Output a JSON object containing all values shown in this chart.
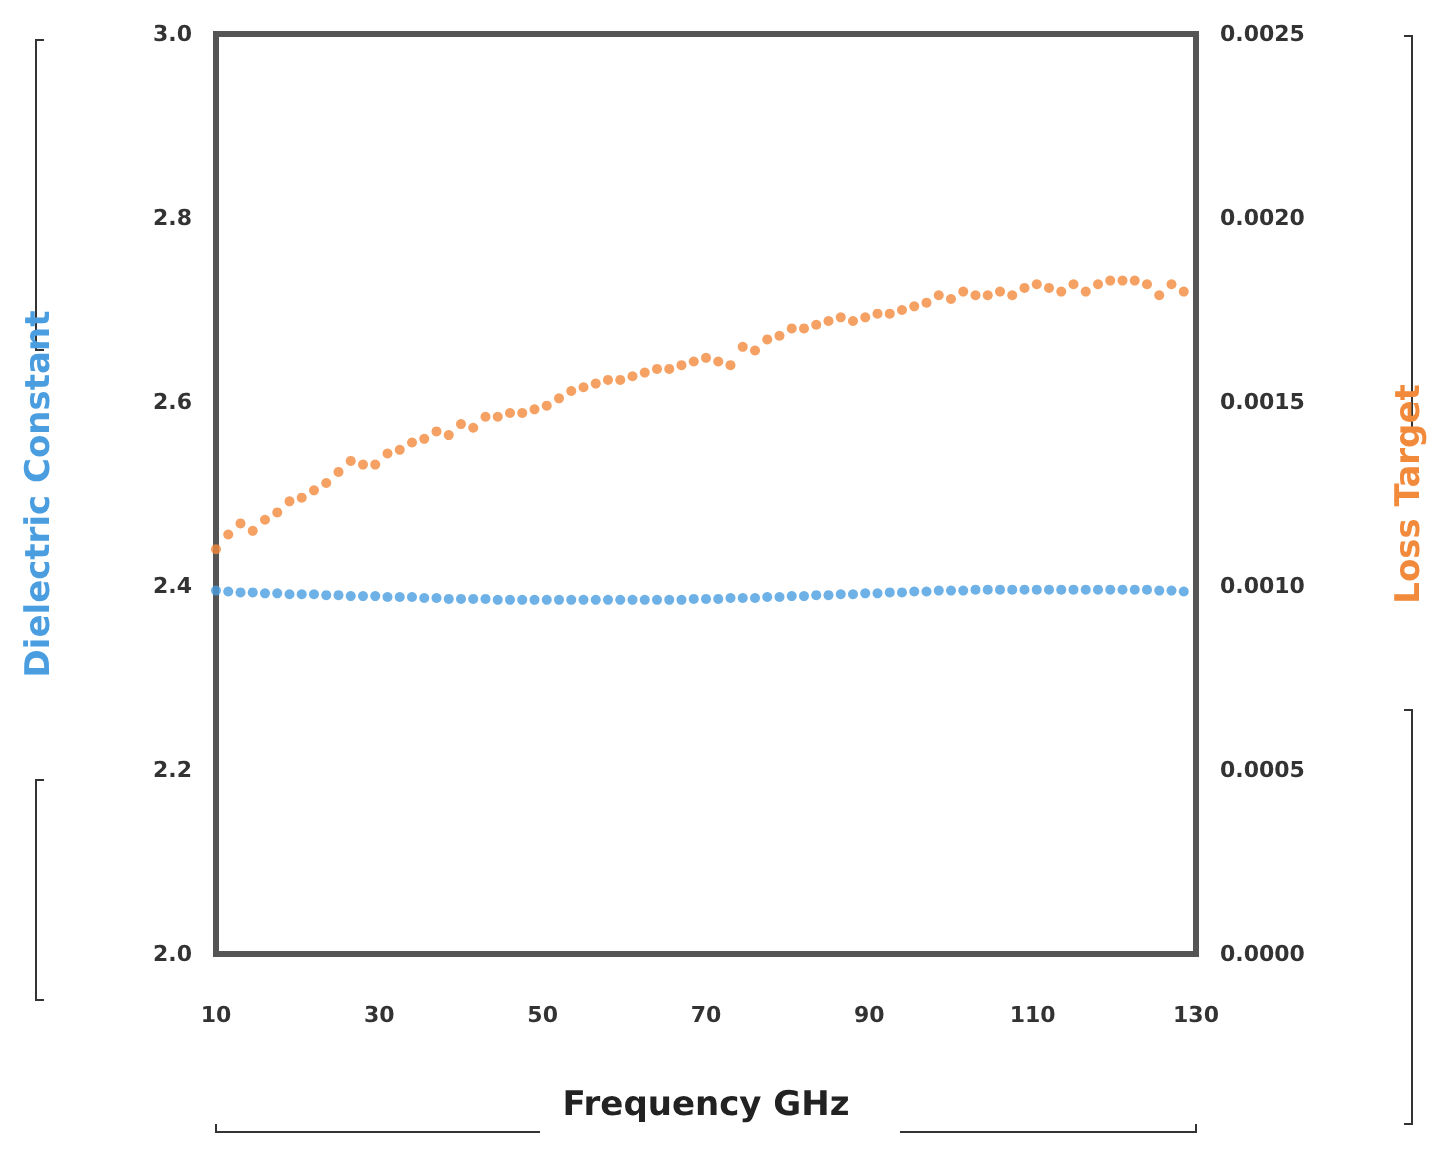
{
  "chart_data": {
    "type": "scatter",
    "xlabel": "Frequency GHz",
    "ylabel": "Dielectric Constant",
    "y2label": "Loss Target",
    "xlim": [
      10,
      130
    ],
    "xticks": [
      10,
      30,
      50,
      70,
      90,
      110,
      130
    ],
    "ylim": [
      2,
      3
    ],
    "yticks": [
      {
        "value": 2,
        "label": "2.0"
      },
      {
        "value": 2.2,
        "label": "2.2"
      },
      {
        "value": 2.4,
        "label": "2.4"
      },
      {
        "value": 2.6,
        "label": "2.6"
      },
      {
        "value": 2.8,
        "label": "2.8"
      },
      {
        "value": 3,
        "label": "3.0"
      }
    ],
    "y2lim": [
      0,
      0.0025
    ],
    "y2ticks": [
      {
        "value": 0,
        "label": "0.0000"
      },
      {
        "value": 0.0005,
        "label": "0.0005"
      },
      {
        "value": 0.001,
        "label": "0.0010"
      },
      {
        "value": 0.0015,
        "label": "0.0015"
      },
      {
        "value": 0.002,
        "label": "0.0020"
      },
      {
        "value": 0.0025,
        "label": "0.0025"
      }
    ],
    "x": [
      10,
      11.5,
      13,
      14.5,
      16,
      17.5,
      19,
      20.5,
      22,
      23.5,
      25,
      26.5,
      28,
      29.5,
      31,
      32.5,
      34,
      35.5,
      37,
      38.5,
      40,
      41.5,
      43,
      44.5,
      46,
      47.5,
      49,
      50.5,
      52,
      53.5,
      55,
      56.5,
      58,
      59.5,
      61,
      62.5,
      64,
      65.5,
      67,
      68.5,
      70,
      71.5,
      73,
      74.5,
      76,
      77.5,
      79,
      80.5,
      82,
      83.5,
      85,
      86.5,
      88,
      89.5,
      91,
      92.5,
      94,
      95.5,
      97,
      98.5,
      100,
      101.5,
      103,
      104.5,
      106,
      107.5,
      109,
      110.5,
      112,
      113.5,
      115,
      116.5,
      118,
      119.5,
      121,
      122.5,
      124,
      125.5,
      127,
      128.5
    ],
    "series": [
      {
        "color": "#4a9ee0",
        "values": [
          2.395,
          2.394,
          2.393,
          2.393,
          2.392,
          2.392,
          2.391,
          2.391,
          2.391,
          2.39,
          2.39,
          2.389,
          2.389,
          2.389,
          2.388,
          2.388,
          2.388,
          2.387,
          2.387,
          2.386,
          2.386,
          2.386,
          2.386,
          2.385,
          2.385,
          2.385,
          2.385,
          2.385,
          2.385,
          2.385,
          2.385,
          2.385,
          2.385,
          2.385,
          2.385,
          2.385,
          2.385,
          2.385,
          2.385,
          2.386,
          2.386,
          2.386,
          2.387,
          2.387,
          2.387,
          2.388,
          2.388,
          2.389,
          2.389,
          2.39,
          2.39,
          2.391,
          2.391,
          2.392,
          2.392,
          2.393,
          2.393,
          2.394,
          2.394,
          2.395,
          2.395,
          2.395,
          2.396,
          2.396,
          2.396,
          2.396,
          2.396,
          2.396,
          2.396,
          2.396,
          2.396,
          2.396,
          2.396,
          2.396,
          2.396,
          2.396,
          2.396,
          2.395,
          2.395,
          2.394
        ]
      },
      {
        "color": "#f28a3c",
        "axis": "y2",
        "values": [
          0.0011,
          0.00114,
          0.00117,
          0.00115,
          0.00118,
          0.0012,
          0.00123,
          0.00124,
          0.00126,
          0.00128,
          0.00131,
          0.00134,
          0.00133,
          0.00133,
          0.00136,
          0.00137,
          0.00139,
          0.0014,
          0.00142,
          0.00141,
          0.00144,
          0.00143,
          0.00146,
          0.00146,
          0.00147,
          0.00147,
          0.00148,
          0.00149,
          0.00151,
          0.00153,
          0.00154,
          0.00155,
          0.00156,
          0.00156,
          0.00157,
          0.00158,
          0.00159,
          0.00159,
          0.0016,
          0.00161,
          0.00162,
          0.00161,
          0.0016,
          0.00165,
          0.00164,
          0.00167,
          0.00168,
          0.0017,
          0.0017,
          0.00171,
          0.00172,
          0.00173,
          0.00172,
          0.00173,
          0.00174,
          0.00174,
          0.00175,
          0.00176,
          0.00177,
          0.00179,
          0.00178,
          0.0018,
          0.00179,
          0.00179,
          0.0018,
          0.00179,
          0.00181,
          0.00182,
          0.00181,
          0.0018,
          0.00182,
          0.0018,
          0.00182,
          0.00183,
          0.00183,
          0.00183,
          0.00182,
          0.00179,
          0.00182,
          0.0018
        ]
      }
    ],
    "marker": "circle",
    "grid": false
  }
}
